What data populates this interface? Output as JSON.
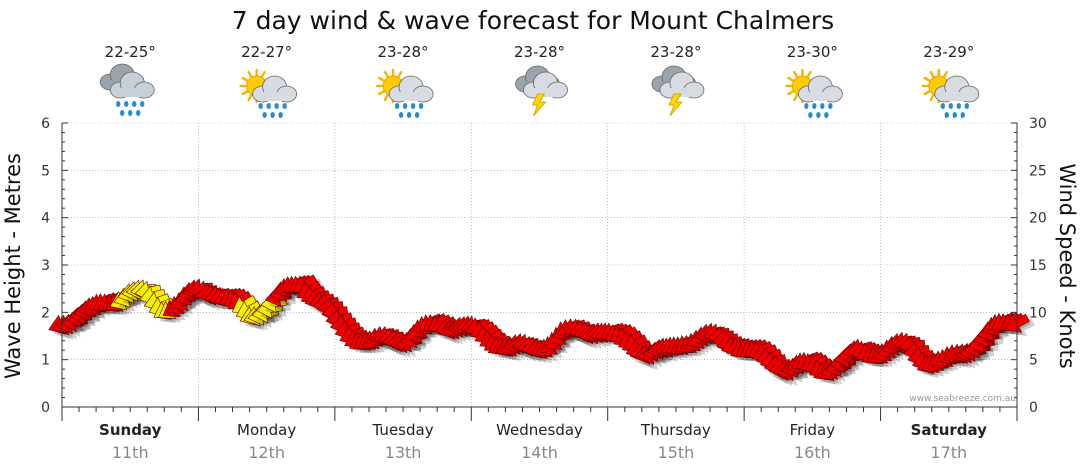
{
  "chart_data": {
    "type": "line",
    "title": "7 day wind & wave forecast for Mount Chalmers",
    "ylabel_left": "Wave Height - Metres",
    "ylabel_right": "Wind Speed - Knots",
    "ylim_left": [
      0,
      6
    ],
    "ylim_right": [
      0,
      30
    ],
    "yticks_left": [
      "0",
      "1",
      "2",
      "3",
      "4",
      "5",
      "6"
    ],
    "yticks_right": [
      "0",
      "5",
      "10",
      "15",
      "20",
      "25",
      "30"
    ],
    "grid": true,
    "credit": "www.seabreeze.com.au",
    "days": [
      {
        "name": "Sunday",
        "date": "11th",
        "bold": true,
        "temp": "22-25°",
        "icon": "rain-cloud-icon"
      },
      {
        "name": "Monday",
        "date": "12th",
        "bold": false,
        "temp": "22-27°",
        "icon": "sun-rain-cloud-icon"
      },
      {
        "name": "Tuesday",
        "date": "13th",
        "bold": false,
        "temp": "23-28°",
        "icon": "sun-rain-cloud-icon"
      },
      {
        "name": "Wednesday",
        "date": "14th",
        "bold": false,
        "temp": "23-28°",
        "icon": "thunderstorm-cloud-icon"
      },
      {
        "name": "Thursday",
        "date": "15th",
        "bold": false,
        "temp": "23-28°",
        "icon": "thunderstorm-cloud-icon"
      },
      {
        "name": "Friday",
        "date": "16th",
        "bold": false,
        "temp": "23-30°",
        "icon": "sun-rain-cloud-icon"
      },
      {
        "name": "Saturday",
        "date": "17th",
        "bold": true,
        "temp": "23-29°",
        "icon": "sun-rain-cloud-icon"
      }
    ],
    "x_hours_step": 3,
    "wind_knots": [
      9,
      10,
      10,
      11,
      12,
      12,
      11,
      11,
      12,
      12,
      11,
      10,
      11,
      12,
      13,
      11,
      9,
      8,
      7,
      7,
      7,
      8,
      9,
      9,
      8,
      7,
      6,
      6,
      7,
      8,
      8,
      8,
      7,
      7,
      6,
      6,
      7,
      7,
      7,
      7,
      6,
      5,
      4,
      4,
      4,
      5,
      6,
      6,
      6,
      6,
      5,
      5,
      6,
      7,
      8,
      9
    ],
    "wind_colors": [
      "red",
      "red",
      "red",
      "red",
      "yellow",
      "yellow",
      "yellow",
      "red",
      "red",
      "red",
      "red",
      "yellow",
      "yellow",
      "red",
      "red",
      "red",
      "red",
      "red",
      "red",
      "red",
      "red",
      "red",
      "red",
      "red",
      "red",
      "red",
      "red",
      "red",
      "red",
      "red",
      "red",
      "red",
      "red",
      "red",
      "red",
      "red",
      "red",
      "red",
      "red",
      "red",
      "red",
      "red",
      "red",
      "red",
      "red",
      "red",
      "red",
      "red",
      "red",
      "red",
      "red",
      "red",
      "red",
      "red",
      "red",
      "red"
    ],
    "series_colors": {
      "red": "#ee0000",
      "yellow": "#f2f200",
      "outline": "#660000"
    }
  }
}
